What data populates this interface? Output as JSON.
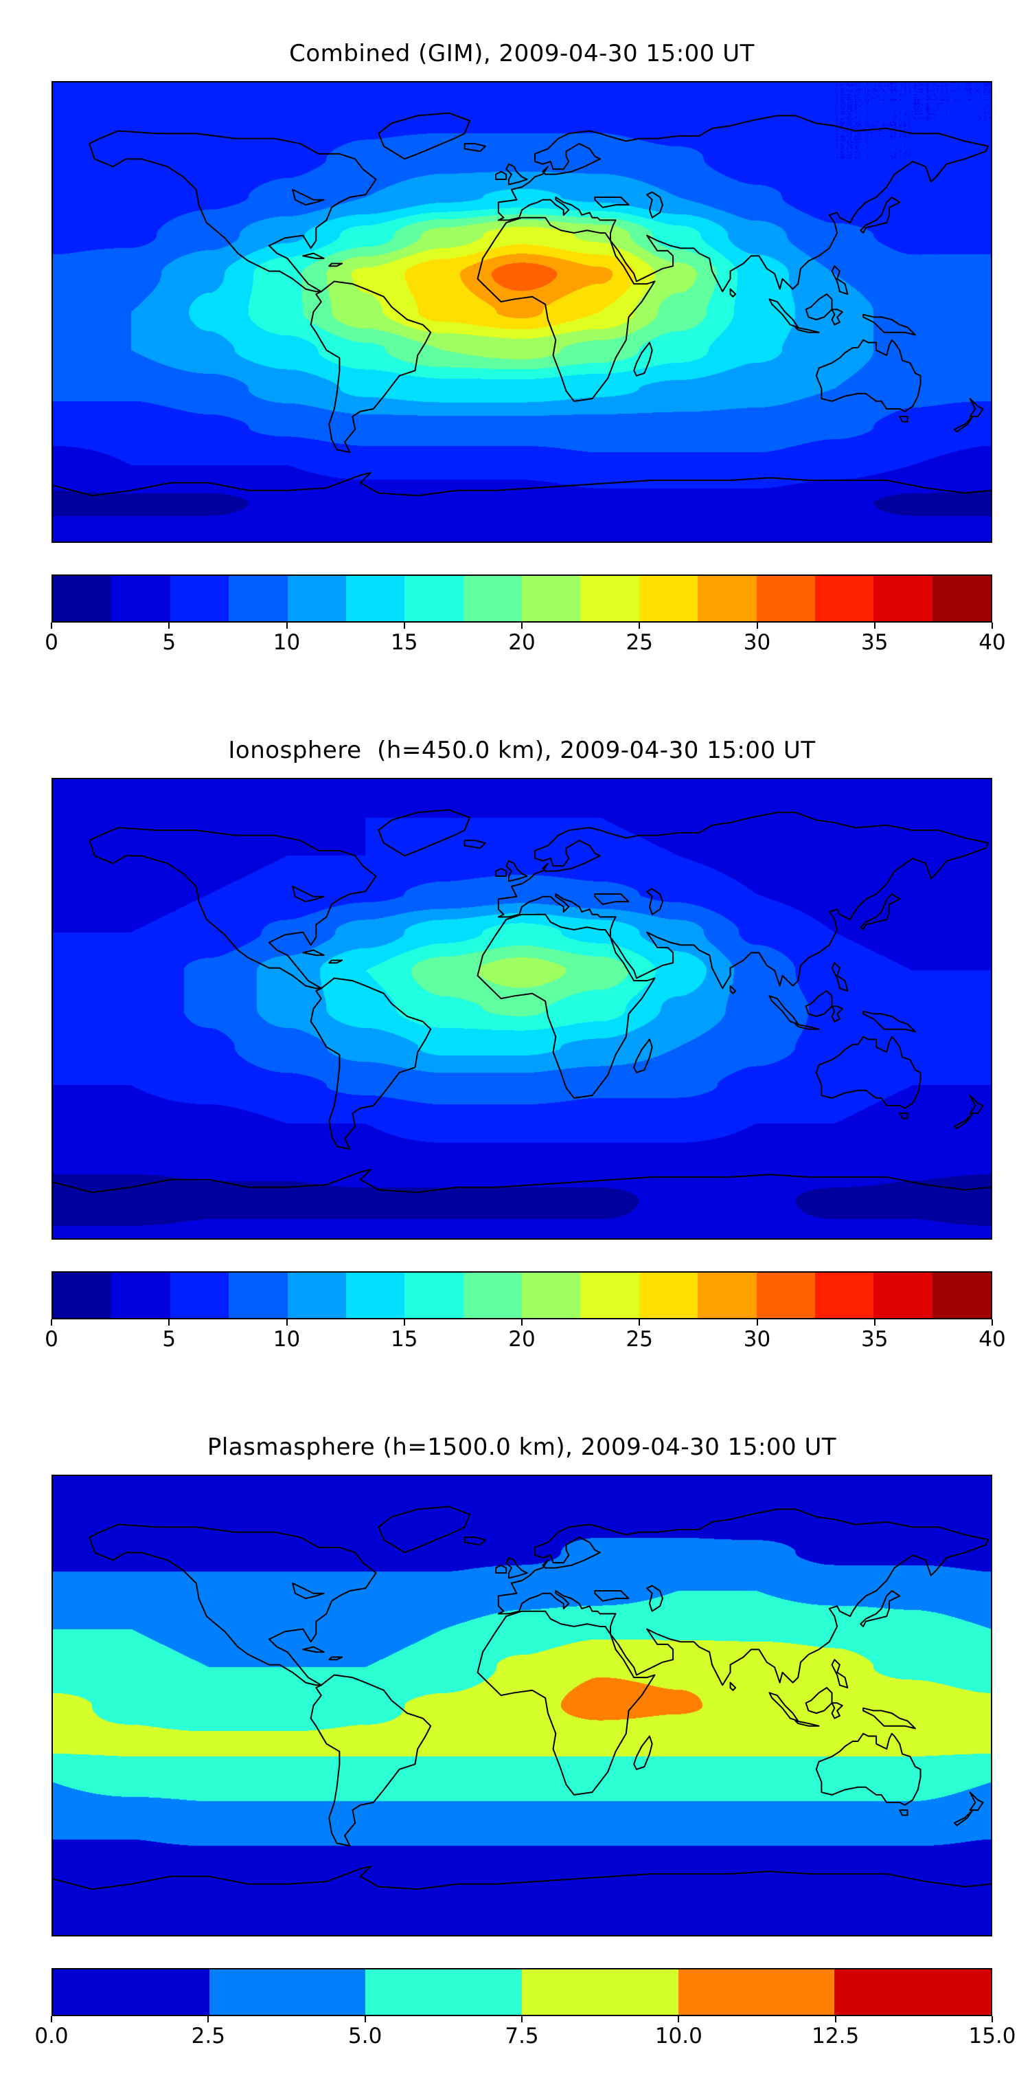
{
  "background_color": "#ffffff",
  "accent_outline_color": "#000000",
  "chart_data": [
    {
      "type": "heatmap",
      "title": "Combined (GIM), 2009-04-30 15:00 UT",
      "colormap": "jet",
      "projection": "equirectangular",
      "lon_range": [
        -180,
        180
      ],
      "lat_range": [
        -90,
        90
      ],
      "levels": {
        "min": 0,
        "max": 40,
        "step": 2.5
      },
      "colorbar_ticks": [
        "0",
        "5",
        "10",
        "15",
        "20",
        "25",
        "30",
        "35",
        "40"
      ],
      "grid": {
        "lons": [
          -180,
          -150,
          -120,
          -90,
          -60,
          -30,
          0,
          30,
          60,
          90,
          120,
          150,
          180
        ],
        "lats": [
          90,
          75,
          60,
          45,
          30,
          15,
          0,
          -15,
          -30,
          -45,
          -60,
          -75,
          -90
        ],
        "values": [
          [
            5,
            5,
            5,
            6,
            6,
            6,
            6,
            6,
            6,
            5,
            5,
            5,
            5
          ],
          [
            5,
            6,
            6,
            6,
            7,
            7,
            7,
            7,
            6,
            6,
            5,
            5,
            5
          ],
          [
            6,
            6,
            6,
            7,
            8,
            9,
            9,
            9,
            8,
            6,
            5,
            5,
            6
          ],
          [
            6,
            6,
            7,
            8,
            10,
            12,
            13,
            12,
            10,
            8,
            6,
            5,
            6
          ],
          [
            7,
            7,
            9,
            12,
            16,
            21,
            24,
            22,
            16,
            11,
            8,
            7,
            7
          ],
          [
            8,
            9,
            12,
            17,
            23,
            27,
            31.5,
            28,
            21,
            14,
            10,
            8,
            8
          ],
          [
            9,
            10,
            13,
            17,
            22,
            26,
            28,
            25,
            19,
            14,
            11,
            9,
            9
          ],
          [
            9,
            10,
            12,
            14,
            17,
            20,
            21,
            19,
            16,
            13,
            11,
            9,
            9
          ],
          [
            8,
            8,
            9,
            11,
            13,
            14,
            14,
            13,
            12,
            11,
            10,
            8,
            8
          ],
          [
            6,
            6,
            7,
            8,
            9,
            9,
            9,
            9,
            9,
            9,
            8,
            7,
            6
          ],
          [
            4,
            5,
            5,
            5,
            6,
            6,
            6,
            7,
            7,
            7,
            6,
            5,
            4
          ],
          [
            2,
            2,
            2,
            3,
            3,
            3,
            3,
            4,
            4,
            4,
            3,
            2,
            2
          ],
          [
            4,
            4,
            4,
            4,
            4,
            4,
            4,
            4,
            4,
            4,
            4,
            4,
            4
          ]
        ]
      }
    },
    {
      "type": "heatmap",
      "title": "Ionosphere  (h=450.0 km), 2009-04-30 15:00 UT",
      "colormap": "jet",
      "projection": "equirectangular",
      "lon_range": [
        -180,
        180
      ],
      "lat_range": [
        -90,
        90
      ],
      "levels": {
        "min": 0,
        "max": 40,
        "step": 2.5
      },
      "colorbar_ticks": [
        "0",
        "5",
        "10",
        "15",
        "20",
        "25",
        "30",
        "35",
        "40"
      ],
      "grid": {
        "lons": [
          -180,
          -150,
          -120,
          -90,
          -60,
          -30,
          0,
          30,
          60,
          90,
          120,
          150,
          180
        ],
        "lats": [
          90,
          75,
          60,
          45,
          30,
          15,
          0,
          -15,
          -30,
          -45,
          -60,
          -75,
          -90
        ],
        "values": [
          [
            4,
            4,
            4,
            4,
            4,
            4,
            4,
            4,
            4,
            4,
            4,
            4,
            4
          ],
          [
            4,
            4,
            4,
            4,
            5,
            5,
            5,
            5,
            4,
            4,
            4,
            4,
            4
          ],
          [
            4,
            4,
            4,
            5,
            5,
            6,
            6,
            6,
            5,
            4,
            4,
            4,
            4
          ],
          [
            4,
            4,
            5,
            6,
            7,
            8,
            9,
            8,
            7,
            5,
            4,
            4,
            4
          ],
          [
            5,
            5,
            6,
            8,
            11,
            14,
            16,
            14,
            11,
            7,
            5,
            4,
            5
          ],
          [
            5,
            6,
            8,
            11,
            15,
            19,
            21.5,
            19,
            14,
            9,
            6,
            5,
            5
          ],
          [
            6,
            6,
            8,
            11,
            14,
            17,
            18,
            16,
            12,
            9,
            7,
            6,
            6
          ],
          [
            6,
            6,
            7,
            9,
            11,
            13,
            13,
            12,
            10,
            8,
            7,
            6,
            6
          ],
          [
            5,
            5,
            6,
            7,
            8,
            9,
            9,
            8,
            8,
            7,
            6,
            5,
            5
          ],
          [
            4,
            4,
            4,
            5,
            5,
            6,
            6,
            6,
            6,
            5,
            5,
            4,
            4
          ],
          [
            3,
            3,
            3,
            3,
            4,
            4,
            4,
            4,
            4,
            4,
            4,
            3,
            3
          ],
          [
            1,
            1,
            2,
            2,
            2,
            2,
            2,
            2,
            3,
            3,
            2,
            2,
            1
          ],
          [
            3,
            3,
            3,
            3,
            3,
            3,
            3,
            3,
            3,
            3,
            3,
            3,
            3
          ]
        ]
      }
    },
    {
      "type": "heatmap",
      "title": "Plasmasphere (h=1500.0 km), 2009-04-30 15:00 UT",
      "colormap": "jet",
      "projection": "equirectangular",
      "lon_range": [
        -180,
        180
      ],
      "lat_range": [
        -90,
        90
      ],
      "levels": {
        "min": 0,
        "max": 15,
        "step": 2.5
      },
      "colorbar_ticks": [
        "0.0",
        "2.5",
        "5.0",
        "7.5",
        "10.0",
        "12.5",
        "15.0"
      ],
      "grid": {
        "lons": [
          -180,
          -150,
          -120,
          -90,
          -60,
          -30,
          0,
          30,
          60,
          90,
          120,
          150,
          180
        ],
        "lats": [
          90,
          75,
          60,
          45,
          30,
          15,
          0,
          -15,
          -30,
          -45,
          -60,
          -75,
          -90
        ],
        "values": [
          [
            1,
            1,
            1,
            1,
            1,
            1,
            1,
            1,
            1,
            1,
            1,
            1,
            1
          ],
          [
            1,
            1,
            1,
            1,
            1,
            1,
            1.5,
            1.5,
            1.5,
            1,
            1,
            1,
            1
          ],
          [
            2,
            2,
            2,
            2,
            2,
            2,
            2,
            3,
            3,
            3,
            2,
            2,
            2
          ],
          [
            3,
            3,
            3,
            3,
            3,
            3,
            4,
            4,
            5,
            5,
            4,
            4,
            3
          ],
          [
            5,
            5,
            4,
            4,
            4,
            5,
            6,
            7,
            7,
            7,
            7,
            6,
            5
          ],
          [
            6,
            6,
            5,
            5,
            5,
            6,
            8,
            9.8,
            9.5,
            9,
            8,
            7,
            6
          ],
          [
            8,
            7,
            6,
            6,
            7,
            8,
            9,
            11,
            10.3,
            9,
            9,
            9,
            8
          ],
          [
            8,
            8,
            8,
            8,
            8,
            8,
            8,
            8,
            8,
            8,
            8,
            8,
            8
          ],
          [
            5,
            6,
            6,
            6,
            6,
            6,
            6,
            6,
            6,
            6,
            6,
            6,
            5
          ],
          [
            3,
            3,
            4,
            4,
            4,
            4,
            4,
            4,
            4,
            4,
            4,
            4,
            3
          ],
          [
            2,
            2,
            2,
            2,
            2,
            2,
            2,
            2,
            2,
            2,
            2,
            2,
            2
          ],
          [
            1,
            1,
            1,
            1,
            1,
            1,
            1,
            1,
            1,
            1,
            1,
            1,
            1
          ],
          [
            1,
            1,
            1,
            1,
            1,
            1,
            1,
            1,
            1,
            1,
            1,
            1,
            1
          ]
        ]
      }
    }
  ]
}
